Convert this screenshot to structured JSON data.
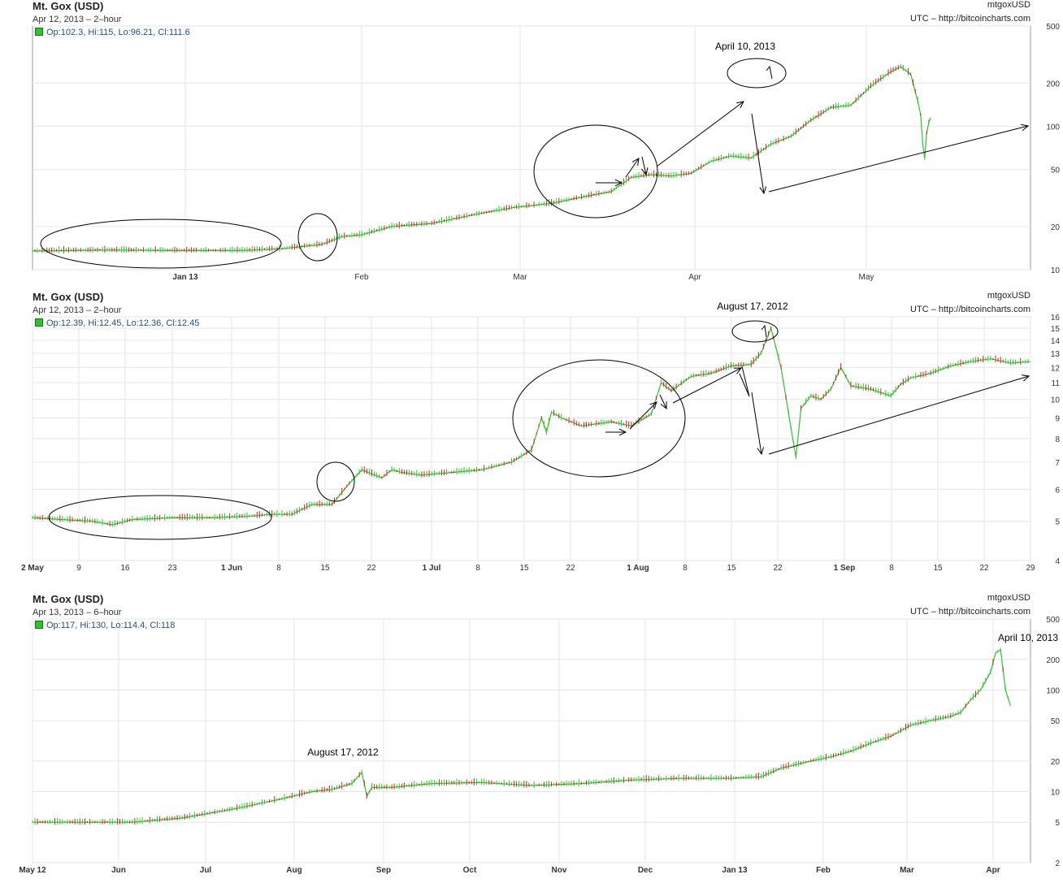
{
  "panels": [
    {
      "title": "Mt. Gox (USD)",
      "subtitle": "Apr 12, 2013 – 2–hour",
      "symbol": "mtgoxUSD",
      "source": "UTC – http://bitcoincharts.com",
      "ohlc": "Op:102.3, Hi:115, Lo:96.21, Cl:111.6"
    },
    {
      "title": "Mt. Gox (USD)",
      "subtitle": "Apr 12, 2013 – 2–hour",
      "symbol": "mtgoxUSD",
      "source": "UTC – http://bitcoincharts.com",
      "ohlc": "Op:12.39, Hi:12.45, Lo:12.36, Cl:12.45"
    },
    {
      "title": "Mt. Gox (USD)",
      "subtitle": "Apr 13, 2013 – 6–hour",
      "symbol": "mtgoxUSD",
      "source": "UTC – http://bitcoincharts.com",
      "ohlc": "Op:117, Hi:130, Lo:114.4, Cl:118"
    }
  ],
  "colors": {
    "up": "#2ec42e",
    "down": "#d62020",
    "grid": "#e6e6e6",
    "axis": "#999999",
    "annotation": "#000000"
  },
  "chart_data": [
    {
      "type": "line",
      "scale": "log",
      "ylim": [
        10,
        500
      ],
      "yticks": [
        "500",
        "200",
        "100",
        "50",
        "20",
        "10"
      ],
      "xticks": [
        "Jan 13",
        "Feb",
        "Mar",
        "Apr",
        "May"
      ],
      "annotations": [
        "April 10, 2013"
      ],
      "series": [
        {
          "x": [
            0,
            0.07,
            0.14,
            0.21,
            0.25,
            0.27,
            0.29,
            0.31,
            0.33,
            0.36,
            0.4,
            0.44,
            0.48,
            0.52,
            0.56,
            0.58,
            0.6,
            0.62,
            0.64,
            0.66,
            0.68,
            0.7,
            0.72,
            0.74,
            0.76,
            0.78,
            0.8,
            0.82,
            0.84,
            0.86,
            0.87,
            0.88,
            0.887,
            0.89,
            0.892,
            0.894,
            0.896,
            0.898,
            0.9
          ],
          "y": [
            13.5,
            13.7,
            13.6,
            13.6,
            14,
            14.5,
            15,
            17,
            17.5,
            20,
            21,
            24,
            27,
            29,
            33,
            35,
            44,
            46,
            45,
            47,
            57,
            62,
            60,
            75,
            85,
            110,
            135,
            140,
            190,
            240,
            260,
            230,
            150,
            120,
            75,
            60,
            90,
            105,
            115
          ]
        }
      ]
    },
    {
      "type": "line",
      "scale": "log",
      "ylim": [
        4,
        16
      ],
      "yticks": [
        "16",
        "15",
        "14",
        "13",
        "12",
        "11",
        "10",
        "9",
        "8",
        "7",
        "6",
        "5",
        "4"
      ],
      "xticks": [
        "2 May",
        "9",
        "16",
        "23",
        "1 Jun",
        "8",
        "15",
        "22",
        "1 Jul",
        "8",
        "15",
        "22",
        "1 Aug",
        "8",
        "15",
        "22",
        "1 Sep",
        "8",
        "15",
        "22",
        "29"
      ],
      "annotations": [
        "August 17, 2012"
      ],
      "series": [
        {
          "x": [
            0,
            0.03,
            0.06,
            0.08,
            0.1,
            0.14,
            0.18,
            0.22,
            0.24,
            0.26,
            0.28,
            0.3,
            0.315,
            0.33,
            0.35,
            0.36,
            0.37,
            0.39,
            0.42,
            0.45,
            0.48,
            0.5,
            0.51,
            0.515,
            0.52,
            0.53,
            0.55,
            0.58,
            0.6,
            0.62,
            0.63,
            0.64,
            0.66,
            0.68,
            0.7,
            0.72,
            0.73,
            0.74,
            0.75,
            0.76,
            0.765,
            0.77,
            0.78,
            0.79,
            0.8,
            0.81,
            0.82,
            0.84,
            0.86,
            0.87,
            0.88,
            0.9,
            0.92,
            0.94,
            0.96,
            0.98,
            1.0
          ],
          "y": [
            5.1,
            5.05,
            5.0,
            4.9,
            5.05,
            5.1,
            5.1,
            5.15,
            5.2,
            5.2,
            5.5,
            5.5,
            6.1,
            6.7,
            6.4,
            6.7,
            6.6,
            6.5,
            6.6,
            6.7,
            7.0,
            7.5,
            9.0,
            8.3,
            9.3,
            9.0,
            8.6,
            8.8,
            8.6,
            9.2,
            11.0,
            10.5,
            11.4,
            11.6,
            12.1,
            12.2,
            13.0,
            15.0,
            12.0,
            8.5,
            7.2,
            9.5,
            10.2,
            10.0,
            10.6,
            12.0,
            10.8,
            10.6,
            10.2,
            10.9,
            11.3,
            11.6,
            12.1,
            12.4,
            12.6,
            12.3,
            12.4
          ]
        }
      ]
    },
    {
      "type": "line",
      "scale": "log",
      "ylim": [
        2,
        500
      ],
      "yticks": [
        "500",
        "200",
        "100",
        "50",
        "20",
        "10",
        "5",
        "2"
      ],
      "xticks": [
        "May 12",
        "Jun",
        "Jul",
        "Aug",
        "Sep",
        "Oct",
        "Nov",
        "Dec",
        "Jan 13",
        "Feb",
        "Mar",
        "Apr"
      ],
      "annotations": [
        "August 17, 2012",
        "April 10, 2013"
      ],
      "series": [
        {
          "x": [
            0,
            0.05,
            0.1,
            0.12,
            0.15,
            0.2,
            0.25,
            0.28,
            0.3,
            0.32,
            0.33,
            0.335,
            0.34,
            0.36,
            0.4,
            0.45,
            0.5,
            0.55,
            0.6,
            0.65,
            0.7,
            0.73,
            0.75,
            0.78,
            0.8,
            0.82,
            0.84,
            0.86,
            0.88,
            0.9,
            0.92,
            0.93,
            0.94,
            0.95,
            0.96,
            0.965,
            0.97,
            0.975,
            0.98
          ],
          "y": [
            5,
            5,
            5,
            5.2,
            5.5,
            6.7,
            8.5,
            10,
            10.5,
            12,
            15.5,
            9,
            11,
            11,
            12,
            12.3,
            11.5,
            12,
            13,
            13.5,
            13.5,
            14,
            17,
            20,
            22,
            25,
            30,
            35,
            45,
            50,
            55,
            60,
            80,
            100,
            150,
            230,
            250,
            100,
            70
          ]
        }
      ]
    }
  ]
}
